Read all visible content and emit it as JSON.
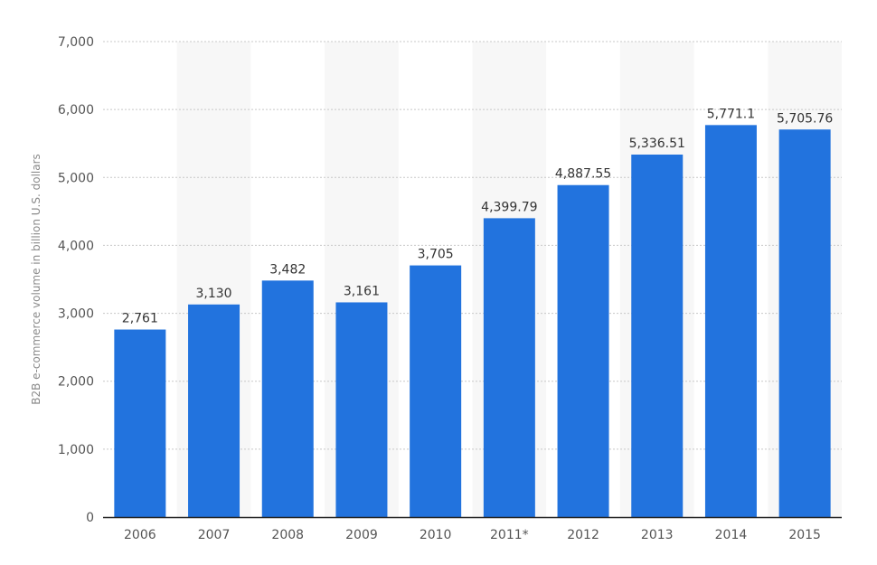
{
  "chart_data": {
    "type": "bar",
    "title": "",
    "xlabel": "",
    "ylabel": "B2B e-commerce volume in billion U.S. dollars",
    "categories": [
      "2006",
      "2007",
      "2008",
      "2009",
      "2010",
      "2011*",
      "2012",
      "2013",
      "2014",
      "2015"
    ],
    "values": [
      2761,
      3130,
      3482,
      3161,
      3705,
      4399.79,
      4887.55,
      5336.51,
      5771.1,
      5705.76
    ],
    "value_labels": [
      "2,761",
      "3,130",
      "3,482",
      "3,161",
      "3,705",
      "4,399.79",
      "4,887.55",
      "5,336.51",
      "5,771.1",
      "5,705.76"
    ],
    "ylim": [
      0,
      7000
    ],
    "yticks": [
      0,
      1000,
      2000,
      3000,
      4000,
      5000,
      6000,
      7000
    ],
    "ytick_labels": [
      "0",
      "1,000",
      "2,000",
      "3,000",
      "4,000",
      "5,000",
      "6,000",
      "7,000"
    ],
    "grid": true,
    "legend": "none",
    "colors": {
      "bar": "#2273de",
      "band": "#f7f7f7",
      "grid": "#c8c8c8",
      "axis": "#222222"
    }
  }
}
